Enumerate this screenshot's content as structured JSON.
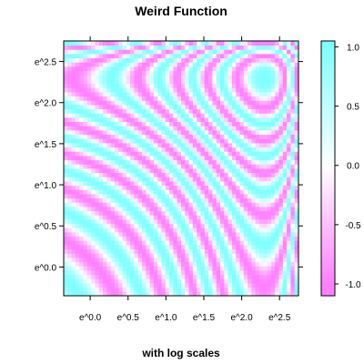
{
  "chart_data": {
    "type": "heatmap",
    "title": "Weird Function",
    "xlabel": "with log scales",
    "ylabel": "",
    "log_scale": {
      "x": true,
      "y": true,
      "base": "e"
    },
    "xlim": [
      -0.35,
      2.75
    ],
    "ylim": [
      -0.35,
      2.75
    ],
    "x_ticks": [
      {
        "value": 0.0,
        "label": "e^0.0"
      },
      {
        "value": 0.5,
        "label": "e^0.5"
      },
      {
        "value": 1.0,
        "label": "e^1.0"
      },
      {
        "value": 1.5,
        "label": "e^1.5"
      },
      {
        "value": 2.0,
        "label": "e^2.0"
      },
      {
        "value": 2.5,
        "label": "e^2.5"
      }
    ],
    "y_ticks": [
      {
        "value": 0.0,
        "label": "e^0.0"
      },
      {
        "value": 0.5,
        "label": "e^0.5"
      },
      {
        "value": 1.0,
        "label": "e^1.0"
      },
      {
        "value": 1.5,
        "label": "e^1.5"
      },
      {
        "value": 2.0,
        "label": "e^2.0"
      },
      {
        "value": 2.5,
        "label": "e^2.5"
      }
    ],
    "colorbar": {
      "range": [
        -1.1,
        1.05
      ],
      "ticks": [
        {
          "value": 1.0,
          "label": "1.0"
        },
        {
          "value": 0.5,
          "label": "0.5"
        },
        {
          "value": 0.0,
          "label": "0.0"
        },
        {
          "value": -0.5,
          "label": "-0.5"
        },
        {
          "value": -1.0,
          "label": "-1.0"
        }
      ]
    },
    "colors": {
      "low": "#ff80ff",
      "mid": "#ffffff",
      "high": "#80ffff"
    },
    "grid": false
  }
}
